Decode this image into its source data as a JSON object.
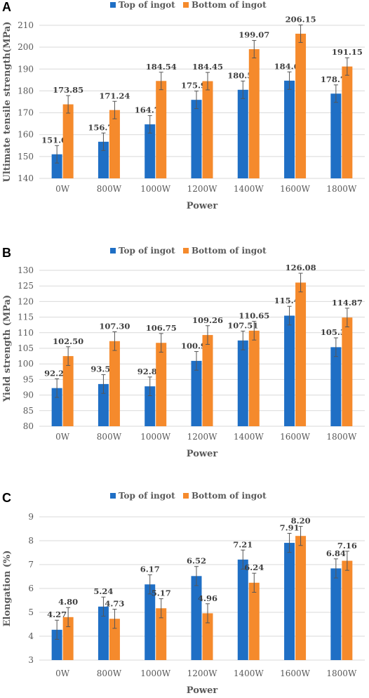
{
  "colors": {
    "top": "#1F6FC5",
    "bottom": "#F58A2C",
    "grid": "#D9D9D9",
    "text": "#595959"
  },
  "chart_data": [
    {
      "panel": "A",
      "type": "bar",
      "categories": [
        "0W",
        "800W",
        "1000W",
        "1200W",
        "1400W",
        "1600W",
        "1800W"
      ],
      "series": [
        {
          "name": "Top of ingot",
          "values": [
            151.01,
            156.75,
            164.7,
            175.91,
            180.51,
            184.68,
            178.75
          ],
          "labels": [
            "151.01",
            "156.75",
            "164.70",
            "175.91",
            "180.51",
            "184.68",
            "178.75"
          ],
          "err": [
            4,
            4,
            4,
            4,
            4,
            4,
            4
          ]
        },
        {
          "name": "Bottom of ingot",
          "values": [
            173.85,
            171.24,
            184.54,
            184.45,
            199.07,
            206.15,
            191.15
          ],
          "labels": [
            "173.85",
            "171.24",
            "184.54",
            "184.45",
            "199.07",
            "206.15",
            "191.15"
          ],
          "err": [
            4,
            4,
            4,
            4,
            4,
            4,
            4
          ]
        }
      ],
      "xlabel": "Power",
      "ylabel": "Ultimate tensile strength(MPa)",
      "ylim": [
        140,
        210
      ],
      "yticks": [
        140,
        150,
        160,
        170,
        180,
        190,
        200,
        210
      ],
      "grid": true,
      "legend": "top-center"
    },
    {
      "panel": "B",
      "type": "bar",
      "categories": [
        "0W",
        "800W",
        "1000W",
        "1200W",
        "1400W",
        "1600W",
        "1800W"
      ],
      "series": [
        {
          "name": "Top of ingot",
          "values": [
            92.24,
            93.54,
            92.8,
            100.97,
            107.51,
            115.47,
            105.36
          ],
          "labels": [
            "92.24",
            "93.54",
            "92.80",
            "100.97",
            "107.51",
            "115.47",
            "105.36"
          ],
          "err": [
            3,
            3,
            3,
            3,
            3,
            3,
            3
          ]
        },
        {
          "name": "Bottom of ingot",
          "values": [
            102.5,
            107.3,
            106.75,
            109.26,
            110.65,
            126.08,
            114.87
          ],
          "labels": [
            "102.50",
            "107.30",
            "106.75",
            "109.26",
            "110.65",
            "126.08",
            "114.87"
          ],
          "err": [
            3,
            3,
            3,
            3,
            3,
            3,
            3
          ]
        }
      ],
      "xlabel": "Power",
      "ylabel": "Yield strength (MPa)",
      "ylim": [
        80,
        130
      ],
      "yticks": [
        80,
        85,
        90,
        95,
        100,
        105,
        110,
        115,
        120,
        125,
        130
      ],
      "grid": true,
      "legend": "top-center"
    },
    {
      "panel": "C",
      "type": "bar",
      "categories": [
        "0W",
        "800W",
        "1000W",
        "1200W",
        "1400W",
        "1600W",
        "1800W"
      ],
      "series": [
        {
          "name": "Top of ingot",
          "values": [
            4.27,
            5.24,
            6.17,
            6.52,
            7.21,
            7.91,
            6.84
          ],
          "labels": [
            "4.27",
            "5.24",
            "6.17",
            "6.52",
            "7.21",
            "7.91",
            "6.84"
          ],
          "err": [
            0.4,
            0.4,
            0.4,
            0.4,
            0.4,
            0.4,
            0.4
          ]
        },
        {
          "name": "Bottom of ingot",
          "values": [
            4.8,
            4.73,
            5.17,
            4.96,
            6.24,
            8.2,
            7.16
          ],
          "labels": [
            "4.80",
            "4.73",
            "5.17",
            "4.96",
            "6.24",
            "8.20",
            "7.16"
          ],
          "err": [
            0.4,
            0.4,
            0.4,
            0.4,
            0.4,
            0.4,
            0.4
          ]
        }
      ],
      "xlabel": "Power",
      "ylabel": "Elongation (%)",
      "ylim": [
        3,
        9
      ],
      "yticks": [
        3,
        4,
        5,
        6,
        7,
        8,
        9
      ],
      "grid": true,
      "legend": "top-center"
    }
  ]
}
